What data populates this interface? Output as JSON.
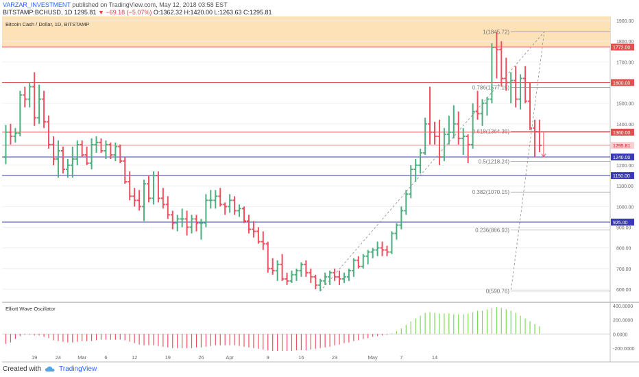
{
  "header": {
    "author": "VARZAR_INVESTMENT",
    "published": "published on TradingView.com, May 12, 2018 03:58 EST",
    "symbol": "BITSTAMP:BCHUSD, 1D",
    "last": "1295.81",
    "change": "▼ −69.18 (−5.07%)",
    "ohlc": "O:1362.32 H:1420.00 L:1263.63 C:1295.81"
  },
  "footer": {
    "created_with": "Created with",
    "brand": "TradingView"
  },
  "chart_data": {
    "type": "ohlc",
    "title": "Bitcoin Cash / Dollar, 1D, BITSTAMP",
    "oscillator_title": "Elliott Wave Oscillator",
    "colors": {
      "up": "#4caf7f",
      "down": "#ef5060",
      "osc_up": "#7ed957",
      "osc_down": "#ef5060",
      "zone": "#fde2b8",
      "line_red": "#e05050",
      "line_blue": "#3a3ab8"
    },
    "y_ticks": [
      600,
      700,
      800,
      900,
      1000,
      1100,
      1200,
      1300,
      1400,
      1500,
      1600,
      1700,
      1800,
      1900
    ],
    "y_tick_labels": [
      "600.00",
      "700.00",
      "800.00",
      "900.00",
      "1000.00",
      "1100.00",
      "1200.00",
      "1300.00",
      "1400.00",
      "1500.00",
      "1600.00",
      "1700.00",
      "1800.00",
      "1900.00"
    ],
    "ylim": [
      540,
      1920
    ],
    "x_ticks": [
      {
        "label": "19",
        "date": "2018-02-19"
      },
      {
        "label": "24",
        "date": "2018-02-24"
      },
      {
        "label": "Mar",
        "date": "2018-03-01"
      },
      {
        "label": "6",
        "date": "2018-03-06"
      },
      {
        "label": "12",
        "date": "2018-03-12"
      },
      {
        "label": "19",
        "date": "2018-03-19"
      },
      {
        "label": "26",
        "date": "2018-03-26"
      },
      {
        "label": "Apr",
        "date": "2018-04-01"
      },
      {
        "label": "9",
        "date": "2018-04-09"
      },
      {
        "label": "16",
        "date": "2018-04-16"
      },
      {
        "label": "23",
        "date": "2018-04-23"
      },
      {
        "label": "May",
        "date": "2018-05-01"
      },
      {
        "label": "7",
        "date": "2018-05-07"
      },
      {
        "label": "14",
        "date": "2018-05-14"
      }
    ],
    "horizontal_levels": [
      {
        "value": 1772,
        "label": "1772.00",
        "color": "red"
      },
      {
        "value": 1600,
        "label": "1600.00",
        "color": "red"
      },
      {
        "value": 1360,
        "label": "1360.00",
        "color": "red"
      },
      {
        "value": 1240,
        "label": "1240.00",
        "color": "blue"
      },
      {
        "value": 1150,
        "label": "1150.00",
        "color": "blue"
      },
      {
        "value": 925,
        "label": "925.00",
        "color": "blue"
      }
    ],
    "last_price": {
      "value": 1295.81,
      "label": "1295.81"
    },
    "resistance_zone": [
      1772,
      1920
    ],
    "fibonacci": [
      {
        "value": 1845.72,
        "label": "1(1845.72)"
      },
      {
        "value": 1577.15,
        "label": "0.786(1577.15)"
      },
      {
        "value": 1364.36,
        "label": "0.618(1364.36)"
      },
      {
        "value": 1218.24,
        "label": "0.5(1218.24)"
      },
      {
        "value": 1070.15,
        "label": "0.382(1070.15)"
      },
      {
        "value": 886.93,
        "label": "0.236(886.93)"
      },
      {
        "value": 590.76,
        "label": "0(590.76)"
      }
    ],
    "osc_ticks": [
      400000,
      200000,
      0,
      -200000
    ],
    "osc_tick_labels": [
      "400.0000",
      "200.0000",
      "0.0000",
      "-200.0000"
    ],
    "osc_ylim": [
      -260000,
      440000
    ],
    "start_date": "2018-02-13",
    "bars": [
      [
        1240,
        1395,
        1205,
        1360
      ],
      [
        1360,
        1400,
        1300,
        1340
      ],
      [
        1340,
        1380,
        1310,
        1355
      ],
      [
        1355,
        1560,
        1340,
        1540
      ],
      [
        1540,
        1580,
        1480,
        1520
      ],
      [
        1520,
        1600,
        1480,
        1580
      ],
      [
        1580,
        1650,
        1390,
        1430
      ],
      [
        1430,
        1590,
        1400,
        1520
      ],
      [
        1520,
        1560,
        1380,
        1410
      ],
      [
        1410,
        1440,
        1280,
        1300
      ],
      [
        1300,
        1340,
        1200,
        1230
      ],
      [
        1230,
        1320,
        1140,
        1270
      ],
      [
        1270,
        1290,
        1160,
        1180
      ],
      [
        1180,
        1230,
        1140,
        1200
      ],
      [
        1200,
        1290,
        1140,
        1230
      ],
      [
        1230,
        1320,
        1200,
        1300
      ],
      [
        1300,
        1320,
        1240,
        1250
      ],
      [
        1250,
        1290,
        1200,
        1210
      ],
      [
        1210,
        1330,
        1180,
        1300
      ],
      [
        1300,
        1340,
        1260,
        1310
      ],
      [
        1310,
        1330,
        1260,
        1270
      ],
      [
        1270,
        1320,
        1230,
        1300
      ],
      [
        1300,
        1310,
        1230,
        1250
      ],
      [
        1250,
        1310,
        1220,
        1290
      ],
      [
        1290,
        1300,
        1210,
        1220
      ],
      [
        1220,
        1240,
        1110,
        1120
      ],
      [
        1120,
        1170,
        1030,
        1050
      ],
      [
        1050,
        1090,
        1000,
        1030
      ],
      [
        1030,
        1080,
        980,
        1000
      ],
      [
        1000,
        1130,
        930,
        1110
      ],
      [
        1110,
        1150,
        1020,
        1040
      ],
      [
        1040,
        1170,
        1010,
        1150
      ],
      [
        1150,
        1170,
        1020,
        1040
      ],
      [
        1040,
        1090,
        990,
        1010
      ],
      [
        1010,
        1050,
        940,
        960
      ],
      [
        960,
        980,
        890,
        920
      ],
      [
        920,
        960,
        880,
        940
      ],
      [
        940,
        990,
        900,
        940
      ],
      [
        940,
        980,
        860,
        900
      ],
      [
        900,
        960,
        870,
        940
      ],
      [
        940,
        960,
        880,
        920
      ],
      [
        920,
        940,
        840,
        920
      ],
      [
        920,
        1060,
        900,
        1030
      ],
      [
        1030,
        1080,
        990,
        1030
      ],
      [
        1030,
        1080,
        990,
        1050
      ],
      [
        1050,
        1090,
        1000,
        1010
      ],
      [
        1010,
        1020,
        960,
        1000
      ],
      [
        1000,
        1060,
        970,
        1030
      ],
      [
        1030,
        1050,
        960,
        980
      ],
      [
        980,
        1010,
        950,
        990
      ],
      [
        990,
        1000,
        920,
        930
      ],
      [
        930,
        960,
        870,
        890
      ],
      [
        890,
        930,
        850,
        880
      ],
      [
        880,
        900,
        820,
        830
      ],
      [
        830,
        880,
        790,
        820
      ],
      [
        820,
        830,
        680,
        700
      ],
      [
        700,
        750,
        670,
        690
      ],
      [
        690,
        740,
        640,
        720
      ],
      [
        720,
        770,
        640,
        650
      ],
      [
        650,
        680,
        620,
        640
      ],
      [
        640,
        690,
        630,
        670
      ],
      [
        670,
        700,
        640,
        690
      ],
      [
        690,
        730,
        660,
        720
      ],
      [
        720,
        740,
        660,
        680
      ],
      [
        680,
        700,
        630,
        660
      ],
      [
        660,
        670,
        600,
        620
      ],
      [
        620,
        650,
        590,
        640
      ],
      [
        640,
        680,
        620,
        660
      ],
      [
        660,
        690,
        620,
        680
      ],
      [
        680,
        700,
        640,
        660
      ],
      [
        660,
        690,
        620,
        650
      ],
      [
        650,
        680,
        630,
        660
      ],
      [
        660,
        700,
        640,
        690
      ],
      [
        690,
        750,
        660,
        740
      ],
      [
        740,
        760,
        700,
        710
      ],
      [
        710,
        770,
        700,
        760
      ],
      [
        760,
        790,
        720,
        780
      ],
      [
        780,
        800,
        750,
        790
      ],
      [
        790,
        830,
        760,
        800
      ],
      [
        800,
        830,
        760,
        790
      ],
      [
        790,
        810,
        760,
        780
      ],
      [
        780,
        880,
        770,
        870
      ],
      [
        870,
        920,
        840,
        910
      ],
      [
        910,
        1000,
        890,
        980
      ],
      [
        980,
        1080,
        960,
        1060
      ],
      [
        1060,
        1200,
        1040,
        1180
      ],
      [
        1180,
        1230,
        1120,
        1200
      ],
      [
        1200,
        1280,
        1160,
        1260
      ],
      [
        1260,
        1430,
        1250,
        1400
      ],
      [
        1400,
        1580,
        1300,
        1360
      ],
      [
        1360,
        1410,
        1300,
        1340
      ],
      [
        1340,
        1420,
        1200,
        1240
      ],
      [
        1240,
        1380,
        1220,
        1350
      ],
      [
        1350,
        1440,
        1300,
        1360
      ],
      [
        1360,
        1490,
        1330,
        1400
      ],
      [
        1400,
        1460,
        1300,
        1330
      ],
      [
        1330,
        1380,
        1250,
        1340
      ],
      [
        1340,
        1350,
        1210,
        1300
      ],
      [
        1300,
        1500,
        1280,
        1460
      ],
      [
        1460,
        1560,
        1420,
        1450
      ],
      [
        1450,
        1520,
        1390,
        1500
      ],
      [
        1500,
        1530,
        1440,
        1520
      ],
      [
        1520,
        1790,
        1500,
        1770
      ],
      [
        1770,
        1845,
        1620,
        1760
      ],
      [
        1760,
        1800,
        1580,
        1620
      ],
      [
        1620,
        1720,
        1560,
        1600
      ],
      [
        1600,
        1650,
        1500,
        1610
      ],
      [
        1610,
        1680,
        1480,
        1520
      ],
      [
        1520,
        1640,
        1470,
        1620
      ],
      [
        1620,
        1680,
        1500,
        1510
      ],
      [
        1510,
        1600,
        1370,
        1380
      ],
      [
        1380,
        1420,
        1240,
        1362
      ],
      [
        1362,
        1420,
        1263,
        1296
      ]
    ],
    "osc_values": [
      -140000,
      -120000,
      -70000,
      -30000,
      -10000,
      -10000,
      -20000,
      -20000,
      -40000,
      -60000,
      -90000,
      -100000,
      -110000,
      -120000,
      -120000,
      -110000,
      -100000,
      -100000,
      -100000,
      -90000,
      -80000,
      -80000,
      -80000,
      -80000,
      -80000,
      -90000,
      -110000,
      -130000,
      -150000,
      -160000,
      -160000,
      -160000,
      -170000,
      -180000,
      -190000,
      -200000,
      -200000,
      -200000,
      -200000,
      -200000,
      -190000,
      -190000,
      -180000,
      -170000,
      -160000,
      -160000,
      -160000,
      -160000,
      -160000,
      -170000,
      -180000,
      -190000,
      -200000,
      -210000,
      -220000,
      -230000,
      -240000,
      -240000,
      -240000,
      -240000,
      -240000,
      -230000,
      -230000,
      -230000,
      -220000,
      -210000,
      -200000,
      -190000,
      -180000,
      -160000,
      -150000,
      -130000,
      -120000,
      -100000,
      -90000,
      -70000,
      -60000,
      -40000,
      -30000,
      -20000,
      -10000,
      10000,
      40000,
      80000,
      130000,
      180000,
      220000,
      260000,
      300000,
      310000,
      300000,
      290000,
      290000,
      290000,
      280000,
      280000,
      280000,
      290000,
      310000,
      330000,
      330000,
      350000,
      370000,
      380000,
      370000,
      350000,
      330000,
      300000,
      260000,
      220000,
      180000,
      140000,
      110000
    ]
  }
}
